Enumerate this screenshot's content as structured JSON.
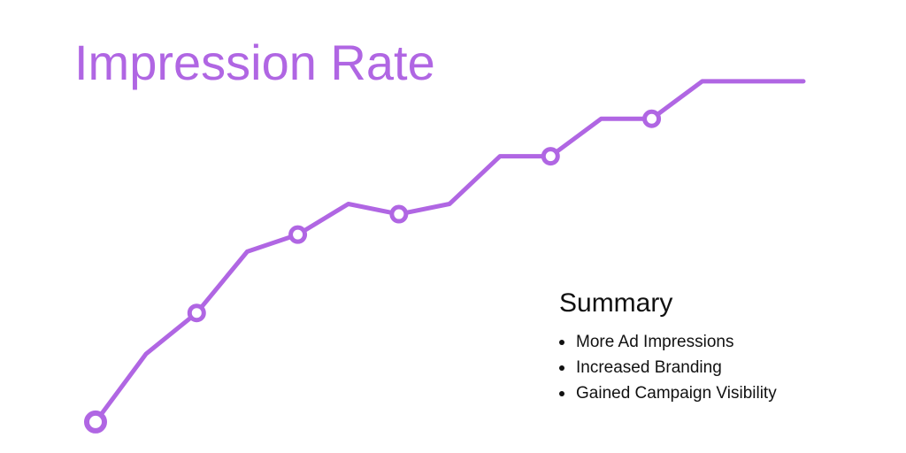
{
  "title": "Impression Rate",
  "accent_color": "#b066e3",
  "summary": {
    "heading": "Summary",
    "items": [
      "More Ad Impressions",
      "Increased Branding",
      "Gained Campaign Visibility"
    ]
  },
  "chart_data": {
    "type": "line",
    "title": "Impression Rate",
    "xlabel": "",
    "ylabel": "",
    "grid": false,
    "axes_visible": false,
    "ylim": [
      0,
      100
    ],
    "x": [
      0,
      1,
      2,
      3,
      4,
      5,
      6,
      7,
      8,
      9,
      10,
      11,
      12,
      13,
      14
    ],
    "series": [
      {
        "values": [
          2,
          22,
          34,
          52,
          57,
          66,
          63,
          66,
          80,
          80,
          91,
          91,
          102,
          102,
          102
        ],
        "markers": [
          true,
          false,
          true,
          false,
          true,
          false,
          true,
          false,
          false,
          true,
          false,
          true,
          false,
          false,
          false
        ]
      }
    ],
    "marker_style": "hollow-circle"
  }
}
